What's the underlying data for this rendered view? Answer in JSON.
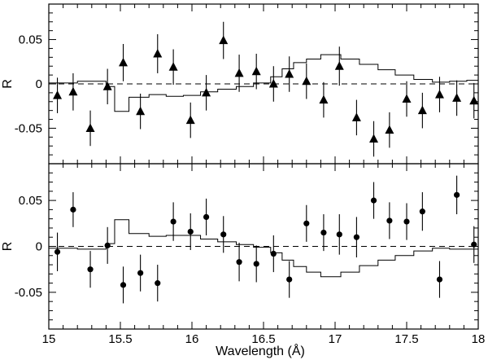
{
  "chart_data": [
    {
      "type": "scatter",
      "panel": "top",
      "marker": "triangle",
      "xlabel": "",
      "ylabel": "R",
      "xlim": [
        15.0,
        18.0
      ],
      "ylim": [
        -0.09,
        0.09
      ],
      "xticks": [
        "15",
        "15.5",
        "16",
        "16.5",
        "17",
        "17.5",
        "18"
      ],
      "yticks": [
        {
          "value": -0.05,
          "label": "-0.05"
        },
        {
          "value": 0,
          "label": "0"
        },
        {
          "value": 0.05,
          "label": "0.05"
        }
      ],
      "zero_line": "dashed",
      "points": [
        {
          "x": 15.06,
          "y": -0.013,
          "err": 0.02
        },
        {
          "x": 15.17,
          "y": -0.009,
          "err": 0.021
        },
        {
          "x": 15.29,
          "y": -0.05,
          "err": 0.02
        },
        {
          "x": 15.41,
          "y": -0.003,
          "err": 0.02
        },
        {
          "x": 15.52,
          "y": 0.024,
          "err": 0.021
        },
        {
          "x": 15.64,
          "y": -0.031,
          "err": 0.02
        },
        {
          "x": 15.76,
          "y": 0.034,
          "err": 0.022
        },
        {
          "x": 15.87,
          "y": 0.019,
          "err": 0.02
        },
        {
          "x": 15.99,
          "y": -0.041,
          "err": 0.02
        },
        {
          "x": 16.1,
          "y": -0.01,
          "err": 0.02
        },
        {
          "x": 16.22,
          "y": 0.049,
          "err": 0.021
        },
        {
          "x": 16.33,
          "y": 0.012,
          "err": 0.021
        },
        {
          "x": 16.45,
          "y": 0.014,
          "err": 0.02
        },
        {
          "x": 16.57,
          "y": 0.0,
          "err": 0.02
        },
        {
          "x": 16.68,
          "y": 0.011,
          "err": 0.02
        },
        {
          "x": 16.8,
          "y": 0.003,
          "err": 0.02
        },
        {
          "x": 16.92,
          "y": -0.018,
          "err": 0.02
        },
        {
          "x": 17.03,
          "y": 0.02,
          "err": 0.022
        },
        {
          "x": 17.15,
          "y": -0.038,
          "err": 0.02
        },
        {
          "x": 17.27,
          "y": -0.062,
          "err": 0.02
        },
        {
          "x": 17.38,
          "y": -0.052,
          "err": 0.02
        },
        {
          "x": 17.5,
          "y": -0.017,
          "err": 0.02
        },
        {
          "x": 17.61,
          "y": -0.03,
          "err": 0.02
        },
        {
          "x": 17.73,
          "y": -0.012,
          "err": 0.02
        },
        {
          "x": 17.85,
          "y": -0.016,
          "err": 0.02
        },
        {
          "x": 17.97,
          "y": -0.019,
          "err": 0.02
        }
      ],
      "model_step": [
        {
          "x": 15.0,
          "y": 0.001
        },
        {
          "x": 15.2,
          "y": 0.003
        },
        {
          "x": 15.4,
          "y": -0.003
        },
        {
          "x": 15.46,
          "y": -0.031
        },
        {
          "x": 15.56,
          "y": -0.015
        },
        {
          "x": 15.7,
          "y": -0.012
        },
        {
          "x": 15.82,
          "y": -0.014
        },
        {
          "x": 15.94,
          "y": -0.013
        },
        {
          "x": 16.06,
          "y": -0.009
        },
        {
          "x": 16.18,
          "y": -0.006
        },
        {
          "x": 16.31,
          "y": -0.003
        },
        {
          "x": 16.43,
          "y": 0.001
        },
        {
          "x": 16.55,
          "y": 0.008
        },
        {
          "x": 16.63,
          "y": 0.017
        },
        {
          "x": 16.71,
          "y": 0.024
        },
        {
          "x": 16.8,
          "y": 0.028
        },
        {
          "x": 16.9,
          "y": 0.033
        },
        {
          "x": 17.04,
          "y": 0.028
        },
        {
          "x": 17.17,
          "y": 0.022
        },
        {
          "x": 17.3,
          "y": 0.016
        },
        {
          "x": 17.42,
          "y": 0.01
        },
        {
          "x": 17.55,
          "y": 0.005
        },
        {
          "x": 17.68,
          "y": 0.002
        },
        {
          "x": 17.8,
          "y": 0.003
        },
        {
          "x": 17.92,
          "y": 0.004
        },
        {
          "x": 18.0,
          "y": 0.004
        }
      ]
    },
    {
      "type": "scatter",
      "panel": "bottom",
      "marker": "circle",
      "xlabel": "Wavelength (Å)",
      "ylabel": "R",
      "xlim": [
        15.0,
        18.0
      ],
      "ylim": [
        -0.09,
        0.09
      ],
      "xticks": [
        "15",
        "15.5",
        "16",
        "16.5",
        "17",
        "17.5",
        "18"
      ],
      "yticks": [
        {
          "value": -0.05,
          "label": "-0.05"
        },
        {
          "value": 0,
          "label": "0"
        },
        {
          "value": 0.05,
          "label": "0.05"
        }
      ],
      "zero_line": "dashed",
      "points": [
        {
          "x": 15.06,
          "y": -0.006,
          "err": 0.021
        },
        {
          "x": 15.17,
          "y": 0.04,
          "err": 0.019
        },
        {
          "x": 15.29,
          "y": -0.025,
          "err": 0.02
        },
        {
          "x": 15.41,
          "y": 0.001,
          "err": 0.02
        },
        {
          "x": 15.52,
          "y": -0.042,
          "err": 0.02
        },
        {
          "x": 15.64,
          "y": -0.029,
          "err": 0.02
        },
        {
          "x": 15.76,
          "y": -0.04,
          "err": 0.02
        },
        {
          "x": 15.87,
          "y": 0.027,
          "err": 0.021
        },
        {
          "x": 15.99,
          "y": 0.016,
          "err": 0.02
        },
        {
          "x": 16.1,
          "y": 0.032,
          "err": 0.02
        },
        {
          "x": 16.22,
          "y": 0.013,
          "err": 0.02
        },
        {
          "x": 16.33,
          "y": -0.017,
          "err": 0.021
        },
        {
          "x": 16.45,
          "y": -0.019,
          "err": 0.02
        },
        {
          "x": 16.57,
          "y": -0.008,
          "err": 0.02
        },
        {
          "x": 16.68,
          "y": -0.036,
          "err": 0.02
        },
        {
          "x": 16.8,
          "y": 0.025,
          "err": 0.02
        },
        {
          "x": 16.92,
          "y": 0.015,
          "err": 0.02
        },
        {
          "x": 17.03,
          "y": 0.013,
          "err": 0.022
        },
        {
          "x": 17.15,
          "y": 0.01,
          "err": 0.022
        },
        {
          "x": 17.27,
          "y": 0.05,
          "err": 0.02
        },
        {
          "x": 17.38,
          "y": 0.028,
          "err": 0.02
        },
        {
          "x": 17.5,
          "y": 0.027,
          "err": 0.02
        },
        {
          "x": 17.61,
          "y": 0.038,
          "err": 0.021
        },
        {
          "x": 17.73,
          "y": -0.036,
          "err": 0.02
        },
        {
          "x": 17.85,
          "y": 0.056,
          "err": 0.021
        },
        {
          "x": 17.97,
          "y": 0.002,
          "err": 0.02
        }
      ],
      "model_step": [
        {
          "x": 15.0,
          "y": -0.002
        },
        {
          "x": 15.2,
          "y": -0.003
        },
        {
          "x": 15.4,
          "y": 0.003
        },
        {
          "x": 15.46,
          "y": 0.029
        },
        {
          "x": 15.56,
          "y": 0.014
        },
        {
          "x": 15.7,
          "y": 0.011
        },
        {
          "x": 15.82,
          "y": 0.012
        },
        {
          "x": 15.94,
          "y": 0.012
        },
        {
          "x": 16.06,
          "y": 0.008
        },
        {
          "x": 16.18,
          "y": 0.005
        },
        {
          "x": 16.31,
          "y": 0.002
        },
        {
          "x": 16.43,
          "y": -0.001
        },
        {
          "x": 16.55,
          "y": -0.007
        },
        {
          "x": 16.63,
          "y": -0.015
        },
        {
          "x": 16.71,
          "y": -0.022
        },
        {
          "x": 16.8,
          "y": -0.028
        },
        {
          "x": 16.9,
          "y": -0.033
        },
        {
          "x": 17.04,
          "y": -0.028
        },
        {
          "x": 17.17,
          "y": -0.021
        },
        {
          "x": 17.3,
          "y": -0.015
        },
        {
          "x": 17.42,
          "y": -0.01
        },
        {
          "x": 17.55,
          "y": -0.005
        },
        {
          "x": 17.68,
          "y": -0.002
        },
        {
          "x": 17.8,
          "y": -0.003
        },
        {
          "x": 17.92,
          "y": -0.003
        },
        {
          "x": 18.0,
          "y": -0.003
        }
      ]
    }
  ]
}
